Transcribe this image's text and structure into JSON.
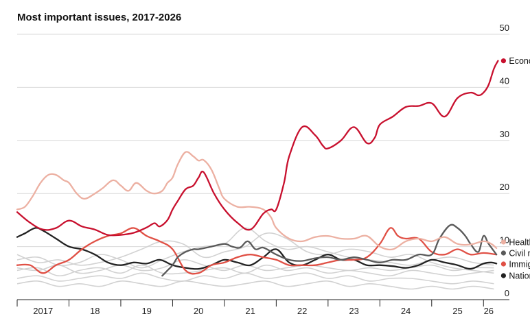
{
  "chart_data": {
    "type": "line",
    "title": "Most important issues, 2017-2026",
    "xlabel": "",
    "ylabel": "",
    "ylim": [
      0,
      50
    ],
    "xlim": [
      2017,
      2026.5
    ],
    "y_ticks": [
      "0",
      "10",
      "20",
      "30",
      "40",
      "50"
    ],
    "x_tick_labels": [
      {
        "x": 2017.5,
        "label": "2017"
      },
      {
        "x": 2018.5,
        "label": "18"
      },
      {
        "x": 2019.5,
        "label": "19"
      },
      {
        "x": 2020.5,
        "label": "20"
      },
      {
        "x": 2021.5,
        "label": "21"
      },
      {
        "x": 2022.5,
        "label": "22"
      },
      {
        "x": 2023.5,
        "label": "23"
      },
      {
        "x": 2024.5,
        "label": "24"
      },
      {
        "x": 2025.5,
        "label": "25"
      },
      {
        "x": 2026.1,
        "label": "26"
      }
    ],
    "x_tick_marks": [
      2017,
      2018,
      2019,
      2020,
      2021,
      2022,
      2023,
      2024,
      2025,
      2026
    ],
    "grid": true,
    "legend": "right",
    "series": [
      {
        "name": "Economy",
        "color": "#c8102e",
        "x": [
          2017.0,
          2017.25,
          2017.5,
          2017.75,
          2018.0,
          2018.25,
          2018.5,
          2018.75,
          2019.0,
          2019.25,
          2019.5,
          2019.65,
          2019.75,
          2019.9,
          2020.0,
          2020.1,
          2020.25,
          2020.4,
          2020.5,
          2020.6,
          2020.8,
          2021.0,
          2021.25,
          2021.5,
          2021.75,
          2021.9,
          2022.0,
          2022.15,
          2022.25,
          2022.5,
          2022.75,
          2022.9,
          2023.0,
          2023.25,
          2023.5,
          2023.75,
          2023.9,
          2024.0,
          2024.25,
          2024.5,
          2024.75,
          2025.0,
          2025.25,
          2025.5,
          2025.75,
          2025.9,
          2026.0,
          2026.1,
          2026.2,
          2026.28
        ],
        "y": [
          16.5,
          14.5,
          13.2,
          13.5,
          14.9,
          13.8,
          13.2,
          12.2,
          12.2,
          12.6,
          13.6,
          14.4,
          13.8,
          15.0,
          17.0,
          18.6,
          20.8,
          21.5,
          23.0,
          24.0,
          20.0,
          17.0,
          14.5,
          13.2,
          16.2,
          17.0,
          17.0,
          22.0,
          27.0,
          32.5,
          31.0,
          29.0,
          28.5,
          30.0,
          32.5,
          29.5,
          30.5,
          33.0,
          34.5,
          36.3,
          36.5,
          37.0,
          34.5,
          38.0,
          39.0,
          38.5,
          39.0,
          40.5,
          43.5,
          45.0
        ]
      },
      {
        "name": "Health care",
        "color": "#ecb0a2",
        "x": [
          2017.0,
          2017.15,
          2017.3,
          2017.45,
          2017.6,
          2017.75,
          2017.9,
          2018.0,
          2018.15,
          2018.3,
          2018.5,
          2018.65,
          2018.85,
          2019.0,
          2019.15,
          2019.3,
          2019.5,
          2019.65,
          2019.8,
          2019.9,
          2020.0,
          2020.1,
          2020.25,
          2020.4,
          2020.5,
          2020.6,
          2020.75,
          2020.9,
          2021.0,
          2021.25,
          2021.5,
          2021.75,
          2021.9,
          2022.0,
          2022.25,
          2022.5,
          2022.75,
          2023.0,
          2023.25,
          2023.5,
          2023.75,
          2024.0,
          2024.25,
          2024.5,
          2024.75,
          2025.0,
          2025.25,
          2025.5,
          2025.75,
          2026.0,
          2026.15,
          2026.25
        ],
        "y": [
          17.0,
          17.5,
          19.5,
          22.0,
          23.5,
          23.5,
          22.5,
          22.0,
          20.0,
          19.0,
          20.0,
          21.0,
          22.5,
          21.5,
          20.5,
          22.0,
          20.5,
          20.0,
          20.5,
          22.0,
          23.0,
          25.5,
          27.8,
          27.0,
          26.2,
          26.3,
          24.5,
          21.0,
          19.0,
          17.5,
          17.5,
          17.0,
          15.5,
          13.5,
          11.5,
          11.0,
          11.8,
          12.0,
          11.5,
          11.5,
          12.0,
          10.0,
          9.5,
          11.0,
          11.5,
          11.0,
          11.8,
          10.5,
          10.4,
          11.0,
          10.5,
          9.7
        ]
      },
      {
        "name": "Civil rights",
        "color": "#5a5a5a",
        "x": [
          2019.8,
          2019.9,
          2020.0,
          2020.1,
          2020.25,
          2020.4,
          2020.5,
          2020.75,
          2021.0,
          2021.15,
          2021.3,
          2021.45,
          2021.6,
          2021.75,
          2022.0,
          2022.25,
          2022.5,
          2022.75,
          2023.0,
          2023.25,
          2023.5,
          2023.75,
          2024.0,
          2024.25,
          2024.5,
          2024.75,
          2025.0,
          2025.15,
          2025.35,
          2025.5,
          2025.65,
          2025.75,
          2025.9,
          2026.0,
          2026.1,
          2026.25
        ],
        "y": [
          4.5,
          5.5,
          6.5,
          8.0,
          9.0,
          9.5,
          9.5,
          10.0,
          10.5,
          10.0,
          9.8,
          11.0,
          9.5,
          9.8,
          8.5,
          7.5,
          7.3,
          7.8,
          8.0,
          7.5,
          8.0,
          7.5,
          7.0,
          7.5,
          7.5,
          8.5,
          8.5,
          11.5,
          14.0,
          13.5,
          12.0,
          10.5,
          9.0,
          12.0,
          10.5,
          8.5
        ]
      },
      {
        "name": "Immigration",
        "color": "#e05045",
        "x": [
          2017.0,
          2017.25,
          2017.5,
          2017.75,
          2018.0,
          2018.25,
          2018.5,
          2018.75,
          2019.0,
          2019.25,
          2019.5,
          2019.75,
          2020.0,
          2020.25,
          2020.5,
          2020.75,
          2021.0,
          2021.25,
          2021.5,
          2021.75,
          2022.0,
          2022.25,
          2022.5,
          2022.75,
          2023.0,
          2023.25,
          2023.5,
          2023.75,
          2024.0,
          2024.2,
          2024.35,
          2024.5,
          2024.75,
          2025.0,
          2025.25,
          2025.5,
          2025.75,
          2026.0,
          2026.25
        ],
        "y": [
          6.5,
          6.5,
          5.0,
          6.5,
          7.5,
          9.5,
          11.0,
          12.0,
          12.5,
          13.5,
          12.0,
          11.0,
          9.5,
          5.5,
          5.0,
          6.5,
          7.0,
          8.0,
          8.5,
          8.0,
          7.5,
          6.5,
          6.5,
          6.5,
          7.0,
          7.5,
          7.5,
          8.0,
          10.5,
          13.5,
          12.0,
          11.5,
          11.5,
          9.0,
          8.5,
          9.5,
          8.5,
          8.8,
          8.5
        ]
      },
      {
        "name": "National security",
        "color": "#222222",
        "x": [
          2017.0,
          2017.15,
          2017.35,
          2017.5,
          2017.75,
          2018.0,
          2018.25,
          2018.5,
          2018.75,
          2019.0,
          2019.25,
          2019.5,
          2019.75,
          2020.0,
          2020.25,
          2020.5,
          2020.75,
          2021.0,
          2021.25,
          2021.5,
          2021.75,
          2022.0,
          2022.25,
          2022.5,
          2022.75,
          2023.0,
          2023.25,
          2023.5,
          2023.75,
          2024.0,
          2024.25,
          2024.5,
          2024.75,
          2025.0,
          2025.25,
          2025.5,
          2025.75,
          2026.0,
          2026.15,
          2026.25
        ],
        "y": [
          11.8,
          12.5,
          13.5,
          13.0,
          11.5,
          10.0,
          9.5,
          8.5,
          7.0,
          6.5,
          7.0,
          6.8,
          7.5,
          6.5,
          6.0,
          5.8,
          6.5,
          7.5,
          7.0,
          6.5,
          8.0,
          9.5,
          7.0,
          6.5,
          7.5,
          8.5,
          7.5,
          7.5,
          6.5,
          6.5,
          6.3,
          6.0,
          6.5,
          7.5,
          7.0,
          6.5,
          5.8,
          6.8,
          7.0,
          6.8
        ]
      }
    ],
    "background_series": [
      {
        "color": "#d2d2d2",
        "x": [
          2017.0,
          2017.4,
          2017.8,
          2018.2,
          2018.6,
          2019.0,
          2019.4,
          2019.8,
          2020.2,
          2020.6,
          2021.0,
          2021.4,
          2021.8,
          2022.2,
          2022.6,
          2023.0,
          2023.4,
          2023.8,
          2024.2,
          2024.6,
          2025.0,
          2025.4,
          2025.8,
          2026.2
        ],
        "y": [
          7.5,
          8.0,
          6.5,
          7.0,
          8.5,
          7.5,
          6.0,
          7.5,
          9.0,
          10.0,
          10.5,
          13.5,
          11.0,
          9.5,
          10.0,
          9.0,
          8.0,
          7.5,
          7.0,
          6.5,
          7.5,
          8.0,
          7.0,
          6.5
        ]
      },
      {
        "color": "#d2d2d2",
        "x": [
          2017.0,
          2017.4,
          2017.8,
          2018.2,
          2018.6,
          2019.0,
          2019.4,
          2019.8,
          2020.2,
          2020.6,
          2021.0,
          2021.4,
          2021.8,
          2022.2,
          2022.6,
          2023.0,
          2023.4,
          2023.8,
          2024.2,
          2024.6,
          2025.0,
          2025.4,
          2025.8,
          2026.2
        ],
        "y": [
          5.5,
          6.0,
          4.5,
          5.5,
          6.0,
          5.0,
          6.5,
          5.0,
          5.0,
          5.5,
          6.0,
          5.0,
          6.5,
          5.5,
          6.0,
          5.0,
          5.5,
          5.0,
          4.5,
          5.5,
          5.0,
          4.5,
          5.0,
          5.5
        ]
      },
      {
        "color": "#d2d2d2",
        "x": [
          2017.0,
          2017.4,
          2017.8,
          2018.2,
          2018.6,
          2019.0,
          2019.4,
          2019.8,
          2020.2,
          2020.6,
          2021.0,
          2021.4,
          2021.8,
          2022.2,
          2022.6,
          2023.0,
          2023.4,
          2023.8,
          2024.2,
          2024.6,
          2025.0,
          2025.4,
          2025.8,
          2026.2
        ],
        "y": [
          4.0,
          4.5,
          3.5,
          4.0,
          4.5,
          4.0,
          5.0,
          4.0,
          3.5,
          4.5,
          4.0,
          5.0,
          4.0,
          4.5,
          5.0,
          4.0,
          4.5,
          3.5,
          4.0,
          4.0,
          3.5,
          3.0,
          3.5,
          3.0
        ]
      },
      {
        "color": "#d2d2d2",
        "x": [
          2017.0,
          2017.4,
          2017.8,
          2018.2,
          2018.6,
          2019.0,
          2019.4,
          2019.8,
          2020.2,
          2020.6,
          2021.0,
          2021.4,
          2021.8,
          2022.2,
          2022.6,
          2023.0,
          2023.4,
          2023.8,
          2024.2,
          2024.6,
          2025.0,
          2025.4,
          2025.8,
          2026.2
        ],
        "y": [
          8.5,
          7.0,
          7.5,
          6.5,
          7.0,
          8.0,
          9.5,
          11.0,
          10.5,
          8.0,
          9.0,
          10.0,
          12.5,
          11.5,
          9.0,
          8.5,
          9.5,
          9.0,
          8.0,
          8.5,
          7.0,
          6.0,
          5.5,
          5.0
        ]
      },
      {
        "color": "#d2d2d2",
        "x": [
          2017.0,
          2017.4,
          2017.8,
          2018.2,
          2018.6,
          2019.0,
          2019.4,
          2019.8,
          2020.2,
          2020.6,
          2021.0,
          2021.4,
          2021.8,
          2022.2,
          2022.6,
          2023.0,
          2023.4,
          2023.8,
          2024.2,
          2024.6,
          2025.0,
          2025.4,
          2025.8,
          2026.2
        ],
        "y": [
          3.0,
          3.5,
          2.5,
          3.0,
          2.5,
          3.5,
          3.0,
          2.5,
          3.5,
          3.0,
          2.5,
          3.0,
          3.5,
          2.5,
          3.0,
          3.5,
          2.5,
          3.0,
          2.5,
          2.0,
          2.5,
          2.0,
          2.5,
          2.0
        ]
      },
      {
        "color": "#d2d2d2",
        "x": [
          2017.0,
          2017.4,
          2017.8,
          2018.2,
          2018.6,
          2019.0,
          2019.4,
          2019.8,
          2020.2,
          2020.6,
          2021.0,
          2021.4,
          2021.8,
          2022.2,
          2022.6,
          2023.0,
          2023.4,
          2023.8,
          2024.2,
          2024.6,
          2025.0,
          2025.4,
          2025.8,
          2026.2
        ],
        "y": [
          6.0,
          5.5,
          6.5,
          5.0,
          5.5,
          6.5,
          5.5,
          6.0,
          7.5,
          6.5,
          5.5,
          6.5,
          5.5,
          6.0,
          6.5,
          6.0,
          5.5,
          6.0,
          5.5,
          6.0,
          6.5,
          5.5,
          6.0,
          6.0
        ]
      }
    ]
  }
}
